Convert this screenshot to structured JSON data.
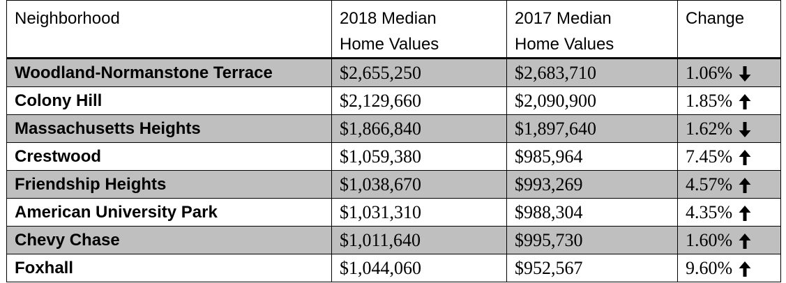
{
  "table": {
    "headers": {
      "neighborhood": "Neighborhood",
      "v2018_line1": "2018 Median",
      "v2018_line2": "Home Values",
      "v2017_line1": "2017 Median",
      "v2017_line2": "Home Values",
      "change": "Change"
    },
    "rows": [
      {
        "name": "Woodland-Normanstone Terrace",
        "v2018": "$2,655,250",
        "v2017": "$2,683,710",
        "change": "1.06%",
        "direction": "down"
      },
      {
        "name": "Colony Hill",
        "v2018": "$2,129,660",
        "v2017": "$2,090,900",
        "change": "1.85%",
        "direction": "up"
      },
      {
        "name": "Massachusetts Heights",
        "v2018": "$1,866,840",
        "v2017": "$1,897,640",
        "change": "1.62%",
        "direction": "down"
      },
      {
        "name": "Crestwood",
        "v2018": "$1,059,380",
        "v2017": "$985,964",
        "change": "7.45%",
        "direction": "up"
      },
      {
        "name": "Friendship Heights",
        "v2018": "$1,038,670",
        "v2017": "$993,269",
        "change": "4.57%",
        "direction": "up"
      },
      {
        "name": "American University Park",
        "v2018": "$1,031,310",
        "v2017": "$988,304",
        "change": "4.35%",
        "direction": "up"
      },
      {
        "name": "Chevy Chase",
        "v2018": "$1,011,640",
        "v2017": "$995,730",
        "change": "1.60%",
        "direction": "up"
      },
      {
        "name": "Foxhall",
        "v2018": "$1,044,060",
        "v2017": "$952,567",
        "change": "9.60%",
        "direction": "up"
      }
    ],
    "shade_color": "#bfbfbf"
  }
}
